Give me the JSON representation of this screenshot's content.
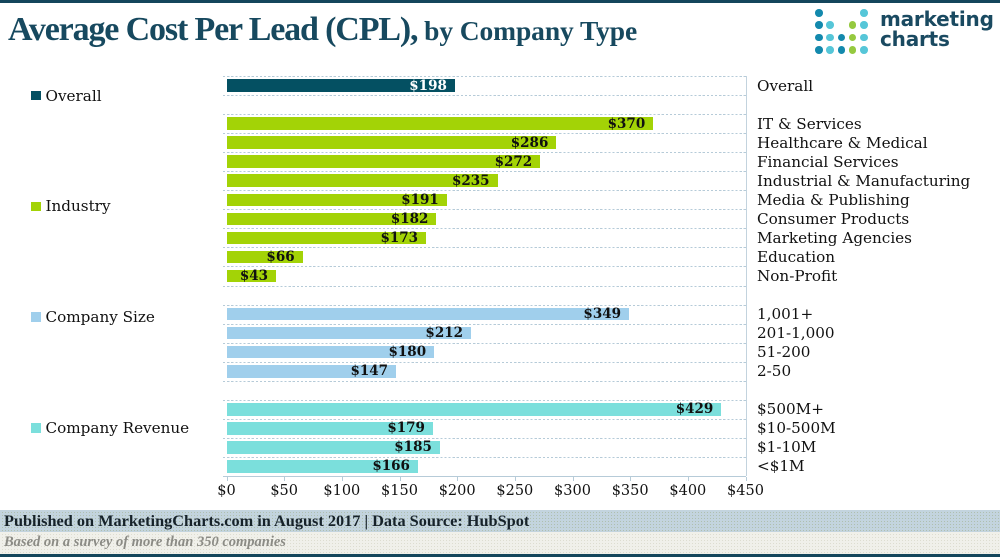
{
  "title": {
    "main": "Average Cost Per Lead (CPL),",
    "sub": " by Company Type"
  },
  "logo": {
    "line1": "marketing",
    "line2": "charts"
  },
  "chart_data": {
    "type": "bar",
    "orientation": "horizontal",
    "title": "Average Cost Per Lead (CPL), by Company Type",
    "xlabel": "",
    "ylabel": "",
    "xlim": [
      0,
      450
    ],
    "x_ticks": [
      "$0",
      "$50",
      "$100",
      "$150",
      "$200",
      "$250",
      "$300",
      "$350",
      "$400",
      "$450"
    ],
    "x_tick_values": [
      0,
      50,
      100,
      150,
      200,
      250,
      300,
      350,
      400,
      450
    ],
    "grid": "dashed-horizontal",
    "groups": [
      {
        "name": "Overall",
        "color": "#045062",
        "items": [
          {
            "label": "Overall",
            "value": 198,
            "value_label": "$198"
          }
        ]
      },
      {
        "name": "Industry",
        "color": "#a3d306",
        "items": [
          {
            "label": "IT & Services",
            "value": 370,
            "value_label": "$370"
          },
          {
            "label": "Healthcare & Medical",
            "value": 286,
            "value_label": "$286"
          },
          {
            "label": "Financial Services",
            "value": 272,
            "value_label": "$272"
          },
          {
            "label": "Industrial & Manufacturing",
            "value": 235,
            "value_label": "$235"
          },
          {
            "label": "Media & Publishing",
            "value": 191,
            "value_label": "$191"
          },
          {
            "label": "Consumer Products",
            "value": 182,
            "value_label": "$182"
          },
          {
            "label": "Marketing Agencies",
            "value": 173,
            "value_label": "$173"
          },
          {
            "label": "Education",
            "value": 66,
            "value_label": "$66"
          },
          {
            "label": "Non-Profit",
            "value": 43,
            "value_label": "$43"
          }
        ]
      },
      {
        "name": "Company Size",
        "color": "#a0cfec",
        "items": [
          {
            "label": "1,001+",
            "value": 349,
            "value_label": "$349"
          },
          {
            "label": "201-1,000",
            "value": 212,
            "value_label": "$212"
          },
          {
            "label": "51-200",
            "value": 180,
            "value_label": "$180"
          },
          {
            "label": "2-50",
            "value": 147,
            "value_label": "$147"
          }
        ]
      },
      {
        "name": "Company Revenue",
        "color": "#7bdfdc",
        "items": [
          {
            "label": "$500M+",
            "value": 429,
            "value_label": "$429"
          },
          {
            "label": "$10-500M",
            "value": 179,
            "value_label": "$179"
          },
          {
            "label": "$1-10M",
            "value": 185,
            "value_label": "$185"
          },
          {
            "label": "<$1M",
            "value": 166,
            "value_label": "$166"
          }
        ]
      }
    ]
  },
  "footer": {
    "line1": "Published on MarketingCharts.com in August 2017 | Data Source: HubSpot",
    "line2": "Based on a survey of more than 350 companies"
  },
  "colors": {
    "accent_dark": "#045062",
    "title_text": "#17495f",
    "border": "#14465c",
    "grid": "#b6cbd8",
    "industry": "#a3d306",
    "company_size": "#a0cfec",
    "company_revenue": "#7bdfdc",
    "logo_blue": "#1389ad",
    "logo_cyan": "#56c6d8",
    "logo_green": "#95c93f",
    "footer1_bg": "#c3d4de",
    "footer2_bg": "#f0f0ea"
  }
}
